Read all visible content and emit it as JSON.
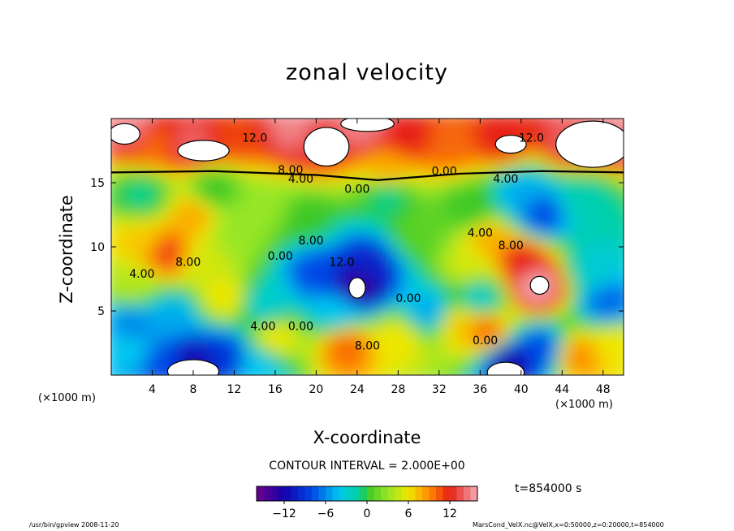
{
  "chart_data": {
    "type": "heatmap",
    "title": "zonal velocity",
    "xlabel": "X-coordinate",
    "ylabel": "Z-coordinate",
    "x_unit_label": "(×1000 m)",
    "x_unit_label_right": "(×1000 m)",
    "xlim": [
      0,
      50
    ],
    "ylim": [
      0,
      20
    ],
    "x_ticks": [
      4,
      8,
      12,
      16,
      20,
      24,
      28,
      32,
      36,
      40,
      44,
      48
    ],
    "y_ticks": [
      5,
      10,
      15
    ],
    "contour_interval_label": "CONTOUR INTERVAL = 2.000E+00",
    "time_label": "t=854000 s",
    "colorbar": {
      "min": -16,
      "max": 16,
      "ticks": [
        -12,
        -6,
        0,
        6,
        12
      ]
    },
    "contour_labels": [
      {
        "text": "12.0",
        "x": 14,
        "z": 18.2
      },
      {
        "text": "12.0",
        "x": 41,
        "z": 18.2
      },
      {
        "text": "8.00",
        "x": 17.5,
        "z": 15.7
      },
      {
        "text": "4.00",
        "x": 18.5,
        "z": 15.0
      },
      {
        "text": "0.00",
        "x": 24,
        "z": 14.2
      },
      {
        "text": "0.00",
        "x": 32.5,
        "z": 15.6
      },
      {
        "text": "4.00",
        "x": 38.5,
        "z": 15.0
      },
      {
        "text": "8.00",
        "x": 7.5,
        "z": 8.5
      },
      {
        "text": "4.00",
        "x": 3,
        "z": 7.6
      },
      {
        "text": "8.00",
        "x": 19.5,
        "z": 10.2
      },
      {
        "text": "0.00",
        "x": 16.5,
        "z": 9.0
      },
      {
        "text": "12.0",
        "x": 22.5,
        "z": 8.5
      },
      {
        "text": "0.00",
        "x": 29,
        "z": 5.7
      },
      {
        "text": "4.00",
        "x": 36,
        "z": 10.8
      },
      {
        "text": "8.00",
        "x": 39,
        "z": 9.8
      },
      {
        "text": "4.00",
        "x": 14.8,
        "z": 3.5
      },
      {
        "text": "0.00",
        "x": 18.5,
        "z": 3.5
      },
      {
        "text": "8.00",
        "x": 25,
        "z": 2.0
      },
      {
        "text": "0.00",
        "x": 36.5,
        "z": 2.4
      }
    ],
    "features": [
      {
        "x": 24,
        "z": 7,
        "value": -14
      },
      {
        "x": 20,
        "z": 8,
        "value": -8
      },
      {
        "x": 25,
        "z": 8.5,
        "value": -10
      },
      {
        "x": 15,
        "z": 5.5,
        "value": -3
      },
      {
        "x": 19,
        "z": 12,
        "value": 0
      },
      {
        "x": 22,
        "z": 5,
        "value": -4
      },
      {
        "x": 41.5,
        "z": 7,
        "value": 16
      },
      {
        "x": 40,
        "z": 9,
        "value": 12
      },
      {
        "x": 37,
        "z": 10.5,
        "value": 8
      },
      {
        "x": 35,
        "z": 8.5,
        "value": 5
      },
      {
        "x": 5.5,
        "z": 9.5,
        "value": 11
      },
      {
        "x": 3,
        "z": 10.5,
        "value": 7
      },
      {
        "x": 9,
        "z": 9,
        "value": 5
      },
      {
        "x": 12,
        "z": 11,
        "value": 3
      },
      {
        "x": 2,
        "z": 7,
        "value": 4
      },
      {
        "x": 11,
        "z": 6,
        "value": 6
      },
      {
        "x": 16,
        "z": 2.8,
        "value": 6
      },
      {
        "x": 23,
        "z": 2.2,
        "value": 10
      },
      {
        "x": 28,
        "z": 2.8,
        "value": 6
      },
      {
        "x": 34,
        "z": 4,
        "value": 7
      },
      {
        "x": 36.5,
        "z": 3.5,
        "value": 10
      },
      {
        "x": 45.5,
        "z": 1.5,
        "value": 9
      },
      {
        "x": 49,
        "z": 2.5,
        "value": 6
      },
      {
        "x": 2,
        "z": 4,
        "value": -6
      },
      {
        "x": 1.5,
        "z": 2,
        "value": -4
      },
      {
        "x": 6,
        "z": 4.5,
        "value": -5
      },
      {
        "x": 8,
        "z": 1,
        "value": -12
      },
      {
        "x": 11,
        "z": 1.5,
        "value": -9
      },
      {
        "x": 5.5,
        "z": 0.6,
        "value": -8
      },
      {
        "x": 14.5,
        "z": 0.8,
        "value": -4
      },
      {
        "x": 39,
        "z": 1,
        "value": -12
      },
      {
        "x": 42,
        "z": 2,
        "value": -8
      },
      {
        "x": 48.5,
        "z": 5.5,
        "value": -7
      },
      {
        "x": 47,
        "z": 8.5,
        "value": -3
      },
      {
        "x": 31,
        "z": 5,
        "value": -5
      },
      {
        "x": 36,
        "z": 6,
        "value": -3
      },
      {
        "x": 30,
        "z": 11,
        "value": 1
      },
      {
        "x": 27,
        "z": 14,
        "value": -1
      },
      {
        "x": 35,
        "z": 13,
        "value": 0
      },
      {
        "x": 40,
        "z": 14,
        "value": -5
      },
      {
        "x": 42,
        "z": 12.5,
        "value": -8
      },
      {
        "x": 46,
        "z": 13.5,
        "value": -2
      },
      {
        "x": 10,
        "z": 14.5,
        "value": 0
      },
      {
        "x": 3,
        "z": 14,
        "value": -1
      },
      {
        "x": 8,
        "z": 12.5,
        "value": 8
      },
      {
        "x": 15,
        "z": 13,
        "value": 3
      },
      {
        "x": 4,
        "z": 18,
        "value": 10
      },
      {
        "x": 8,
        "z": 18,
        "value": 14
      },
      {
        "x": 12,
        "z": 18.5,
        "value": 11
      },
      {
        "x": 20,
        "z": 18.5,
        "value": 13
      },
      {
        "x": 24.5,
        "z": 19.5,
        "value": 15
      },
      {
        "x": 29,
        "z": 18.5,
        "value": 12
      },
      {
        "x": 33,
        "z": 18,
        "value": 10
      },
      {
        "x": 38,
        "z": 18.5,
        "value": 12
      },
      {
        "x": 45,
        "z": 18.5,
        "value": 14
      },
      {
        "x": 49,
        "z": 19,
        "value": 15
      },
      {
        "x": 2,
        "z": 19.3,
        "value": 15
      },
      {
        "x": 18,
        "z": 19.3,
        "value": 15
      },
      {
        "x": 27,
        "z": 16,
        "value": 8
      }
    ],
    "white_regions": [
      {
        "x": 24,
        "z": 6.8,
        "rx": 0.8,
        "rz": 0.8
      },
      {
        "x": 41.8,
        "z": 7,
        "rx": 0.9,
        "rz": 0.7
      },
      {
        "x": 8,
        "z": 0.3,
        "rx": 2.5,
        "rz": 0.9
      },
      {
        "x": 38.5,
        "z": 0.2,
        "rx": 1.8,
        "rz": 0.8
      },
      {
        "x": 9,
        "z": 17.5,
        "rx": 2.5,
        "rz": 0.8
      },
      {
        "x": 21,
        "z": 17.8,
        "rx": 2.2,
        "rz": 1.5
      },
      {
        "x": 25,
        "z": 19.6,
        "rx": 2.6,
        "rz": 0.6
      },
      {
        "x": 39,
        "z": 18,
        "rx": 1.5,
        "rz": 0.7
      },
      {
        "x": 47,
        "z": 18,
        "rx": 3.6,
        "rz": 1.8
      },
      {
        "x": 1.3,
        "z": 18.8,
        "rx": 1.5,
        "rz": 0.8
      }
    ]
  },
  "footer": {
    "left": "/usr/bin/gpview  2008-11-20",
    "right": "MarsCond_VelX.nc@VelX,x=0:50000,z=0:20000,t=854000"
  }
}
